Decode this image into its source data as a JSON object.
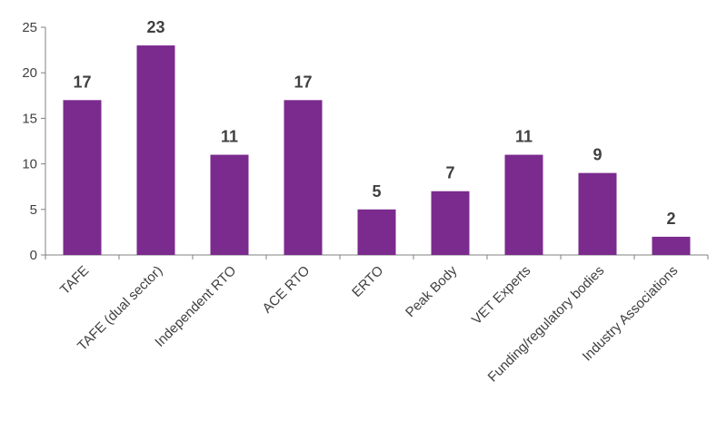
{
  "chart_data": {
    "type": "bar",
    "categories": [
      "TAFE",
      "TAFE (dual sector)",
      "Independent RTO",
      "ACE RTO",
      "ERTO",
      "Peak Body",
      "VET Experts",
      "Funding/regulatory bodies",
      "Industry Associations"
    ],
    "values": [
      17,
      23,
      11,
      17,
      5,
      7,
      11,
      9,
      2
    ],
    "title": "",
    "xlabel": "",
    "ylabel": "",
    "ylim": [
      0,
      25
    ],
    "yticks": [
      0,
      5,
      10,
      15,
      20,
      25
    ],
    "grid": false,
    "legend": "none",
    "bar_color": "#7B2A8E",
    "data_labels": true
  }
}
